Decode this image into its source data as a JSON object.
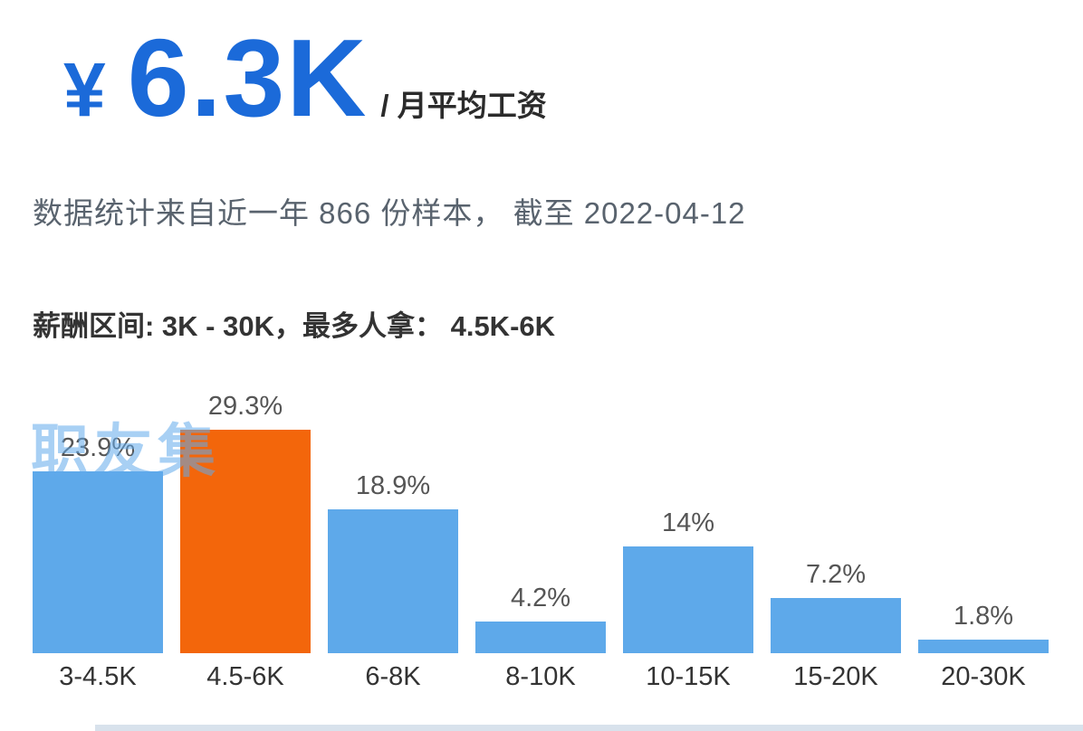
{
  "header": {
    "currency": "¥",
    "amount": "6.3K",
    "suffix": "/ 月平均工资"
  },
  "subtitle": "数据统计来自近一年 866 份样本， 截至 2022-04-12",
  "salary_range_line": "薪酬区间: 3K - 30K，最多人拿： 4.5K-6K",
  "watermark": "职友集",
  "colors": {
    "title_blue": "#1b6ad9",
    "bar_blue": "#5ea9ea",
    "bar_highlight_orange": "#f3660b",
    "subtitle_gray": "#59636e",
    "text_dark": "#333333",
    "watermark_blue": "rgba(97,170,235,0.55)",
    "bottom_strip": "#d8e2ec"
  },
  "chart_data": {
    "type": "bar",
    "categories": [
      "3-4.5K",
      "4.5-6K",
      "6-8K",
      "8-10K",
      "10-15K",
      "15-20K",
      "20-30K"
    ],
    "values": [
      23.9,
      29.3,
      18.9,
      4.2,
      14,
      7.2,
      1.8
    ],
    "value_labels": [
      "23.9%",
      "29.3%",
      "18.9%",
      "4.2%",
      "14%",
      "7.2%",
      "1.8%"
    ],
    "unit": "%",
    "highlight_index": 1,
    "highlight_category": "4.5-6K",
    "bar_color": "#5ea9ea",
    "highlight_color": "#f3660b",
    "ylim": [
      0,
      30
    ],
    "grid": false,
    "legend": false,
    "title": "",
    "xlabel": "",
    "ylabel": ""
  }
}
